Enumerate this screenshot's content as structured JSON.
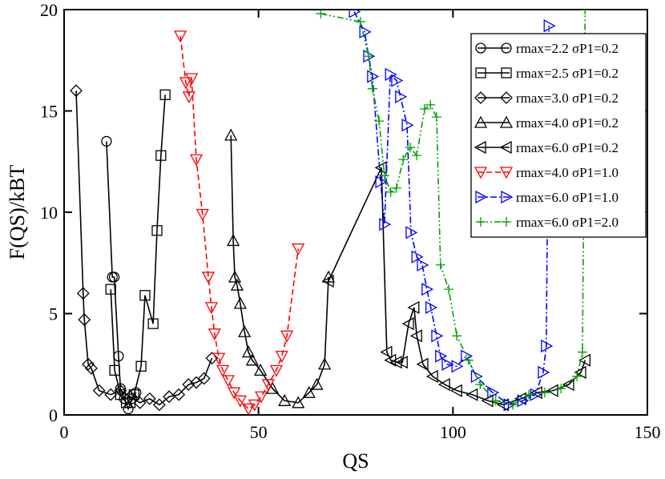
{
  "chart_data": {
    "type": "line",
    "x_label": "QS",
    "y_label": "F(QS)/kBT",
    "xlim": [
      0,
      150
    ],
    "ylim": [
      0,
      20
    ],
    "xticks": [
      0,
      50,
      100,
      150
    ],
    "yticks": [
      0,
      5,
      10,
      15,
      20
    ],
    "legend": "upper right",
    "series": [
      {
        "name": "rmax=2.2 σP1=0.2",
        "color": "#000000",
        "marker": "circle",
        "dash": "solid",
        "x": [
          10.9,
          12.4,
          12.9,
          14.0,
          14.5,
          15.5,
          16.5,
          17.5,
          18.5
        ],
        "values": [
          13.5,
          6.8,
          6.8,
          2.9,
          1.3,
          0.8,
          0.3,
          0.8,
          1.1
        ]
      },
      {
        "name": "rmax=2.5 σP1=0.2",
        "color": "#000000",
        "marker": "square",
        "dash": "solid",
        "x": [
          12.0,
          13.0,
          14.5,
          16.0,
          17.0,
          18.0,
          19.8,
          20.8,
          22.9,
          23.9,
          24.9,
          26.0
        ],
        "values": [
          6.2,
          2.2,
          1.0,
          0.6,
          0.6,
          1.0,
          2.4,
          5.9,
          4.5,
          9.1,
          12.8,
          15.8
        ]
      },
      {
        "name": "rmax=3.0 σP1=0.2",
        "color": "#000000",
        "marker": "diamond",
        "dash": "solid",
        "x": [
          3.1,
          4.9,
          5.2,
          6.2,
          7.0,
          9.0,
          12.0,
          14.5,
          17.0,
          19.5,
          22.0,
          24.5,
          27.0,
          29.5,
          32.0,
          34.0,
          36.0,
          38.0
        ],
        "values": [
          16.0,
          6.0,
          4.7,
          2.5,
          2.3,
          1.2,
          1.0,
          1.2,
          0.9,
          0.6,
          0.8,
          0.5,
          0.9,
          1.0,
          1.5,
          1.6,
          1.8,
          2.8
        ]
      },
      {
        "name": "rmax=4.0 σP1=0.2",
        "color": "#000000",
        "marker": "triangle-up",
        "dash": "solid",
        "x": [
          42.9,
          43.5,
          43.9,
          44.5,
          45.3,
          46.4,
          47.4,
          48.4,
          50.5,
          53.6,
          56.7,
          60.2,
          63.0,
          65.0,
          67.0,
          68.0
        ],
        "values": [
          13.8,
          8.6,
          6.8,
          6.4,
          5.5,
          4.1,
          3.1,
          2.7,
          2.2,
          1.3,
          0.7,
          0.6,
          1.1,
          1.5,
          2.5,
          6.8
        ]
      },
      {
        "name": "rmax=6.0 σP1=0.2",
        "color": "#000000",
        "marker": "triangle-left",
        "dash": "solid",
        "x": [
          68.0,
          81.6,
          83.0,
          84.0,
          85.5,
          87.0,
          88.6,
          90.0,
          90.7,
          92.3,
          94.8,
          97.9,
          101.0,
          105.0,
          109.0,
          113.0,
          117.5,
          121.6,
          125.7,
          129.8,
          132.9,
          134.0
        ],
        "values": [
          6.6,
          12.2,
          3.1,
          2.7,
          2.6,
          2.6,
          4.5,
          5.3,
          3.9,
          2.5,
          1.9,
          1.5,
          1.2,
          1.0,
          0.7,
          0.5,
          0.8,
          1.1,
          1.2,
          1.5,
          2.1,
          2.7
        ]
      },
      {
        "name": "rmax=4.0 σP1=1.0",
        "color": "#ff0000",
        "marker": "triangle-down",
        "dash": "dashed",
        "x": [
          29.9,
          31.3,
          32.1,
          32.8,
          34.0,
          35.6,
          37.1,
          37.9,
          38.7,
          39.8,
          40.8,
          42.2,
          43.7,
          45.3,
          47.4,
          49.0,
          50.7,
          52.5,
          54.6,
          56.0,
          57.3,
          60.2
        ],
        "values": [
          18.7,
          16.4,
          15.7,
          16.6,
          12.6,
          9.9,
          6.8,
          5.3,
          4.0,
          2.8,
          2.2,
          1.7,
          1.1,
          0.7,
          0.3,
          0.5,
          0.9,
          1.5,
          2.2,
          2.9,
          3.9,
          8.2
        ]
      },
      {
        "name": "rmax=6.0 σP1=1.0",
        "color": "#0000ff",
        "marker": "triangle-right",
        "dash": "dashdot",
        "x": [
          74.6,
          77.3,
          78.3,
          79.3,
          81.4,
          82.4,
          83.9,
          85.5,
          86.5,
          88.2,
          89.2,
          90.7,
          92.1,
          93.3,
          94.3,
          95.8,
          96.8,
          98.5,
          101.0,
          103.4,
          106.0,
          110.2,
          114.4,
          117.9,
          121.2,
          123.2,
          124.0,
          124.7
        ],
        "values": [
          19.9,
          18.9,
          17.7,
          16.7,
          11.5,
          9.4,
          16.8,
          16.5,
          15.7,
          14.3,
          9.0,
          7.8,
          7.4,
          6.2,
          5.3,
          3.9,
          2.9,
          2.5,
          2.4,
          2.9,
          1.9,
          1.1,
          0.5,
          0.7,
          1.0,
          2.1,
          3.4,
          19.2
        ]
      },
      {
        "name": "rmax=6.0 σP1=2.0",
        "color": "#00a000",
        "marker": "plus",
        "dash": "dashdotdot",
        "x": [
          66.0,
          76.2,
          78.3,
          79.3,
          81.0,
          82.4,
          84.0,
          85.5,
          87.2,
          89.0,
          90.7,
          92.7,
          94.2,
          95.8,
          96.8,
          98.9,
          101.0,
          104.0,
          107.0,
          111.0,
          115.4,
          119.5,
          123.6,
          127.8,
          131.9,
          133.3,
          134.0
        ],
        "values": [
          19.8,
          19.4,
          17.7,
          16.1,
          14.5,
          11.8,
          11.0,
          11.2,
          12.6,
          13.2,
          12.8,
          15.1,
          15.3,
          14.7,
          7.4,
          6.2,
          3.9,
          2.7,
          1.5,
          0.7,
          0.5,
          1.0,
          1.1,
          1.3,
          1.9,
          3.1,
          20.0
        ]
      }
    ]
  }
}
